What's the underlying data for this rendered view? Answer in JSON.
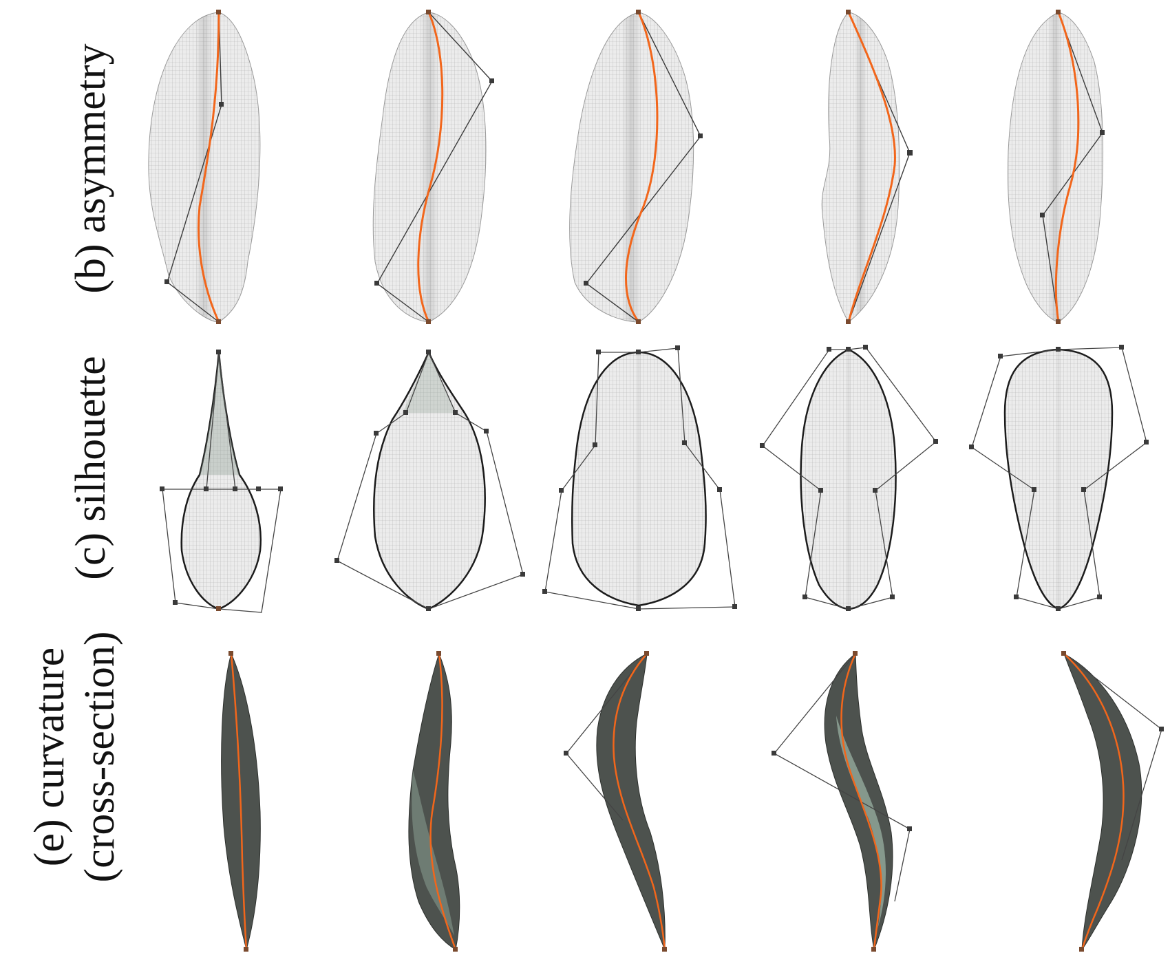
{
  "labels": {
    "asymmetry": "(b) asymmetry",
    "silhouette": "(c) silhouette",
    "curvature_line1": "(e) curvature",
    "curvature_line2": "(cross-section)"
  },
  "colors": {
    "mesh_fill": "#e9e9e9",
    "mesh_line": "#b4b4b4",
    "midrib": "#f2661b",
    "control_line": "#444444",
    "control_point": "#7a4a2e",
    "dark_surface": "#4d524e",
    "light_surface": "#8fa598",
    "outline": "#1c1c1c"
  }
}
